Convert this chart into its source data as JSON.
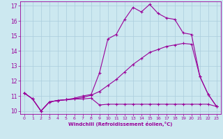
{
  "xlabel": "Windchill (Refroidissement éolien,°C)",
  "background_color": "#cce8f0",
  "grid_color": "#aaccdd",
  "line_color": "#990099",
  "xlim": [
    -0.5,
    23.5
  ],
  "ylim": [
    9.8,
    17.3
  ],
  "yticks": [
    10,
    11,
    12,
    13,
    14,
    15,
    16,
    17
  ],
  "xticks": [
    0,
    1,
    2,
    3,
    4,
    5,
    6,
    7,
    8,
    9,
    10,
    11,
    12,
    13,
    14,
    15,
    16,
    17,
    18,
    19,
    20,
    21,
    22,
    23
  ],
  "line1_x": [
    0,
    1,
    2,
    3,
    4,
    5,
    6,
    7,
    8,
    9,
    10,
    11,
    12,
    13,
    14,
    15,
    16,
    17,
    18,
    19,
    20,
    21,
    22,
    23
  ],
  "line1_y": [
    11.2,
    10.8,
    10.0,
    10.6,
    10.7,
    10.75,
    10.8,
    10.8,
    10.85,
    10.4,
    10.45,
    10.45,
    10.45,
    10.45,
    10.45,
    10.45,
    10.45,
    10.45,
    10.45,
    10.45,
    10.45,
    10.45,
    10.45,
    10.3
  ],
  "line2_x": [
    0,
    1,
    2,
    3,
    4,
    5,
    6,
    7,
    8,
    9,
    10,
    11,
    12,
    13,
    14,
    15,
    16,
    17,
    18,
    19,
    20,
    21,
    22,
    23
  ],
  "line2_y": [
    11.2,
    10.8,
    10.0,
    10.6,
    10.7,
    10.75,
    10.8,
    10.9,
    11.05,
    11.3,
    11.7,
    12.1,
    12.6,
    13.1,
    13.5,
    13.9,
    14.1,
    14.3,
    14.4,
    14.5,
    14.45,
    12.3,
    11.1,
    10.3
  ],
  "line3_x": [
    0,
    1,
    2,
    3,
    4,
    5,
    6,
    7,
    8,
    9,
    10,
    11,
    12,
    13,
    14,
    15,
    16,
    17,
    18,
    19,
    20,
    21,
    22,
    23
  ],
  "line3_y": [
    11.2,
    10.8,
    10.0,
    10.6,
    10.7,
    10.75,
    10.85,
    11.0,
    11.1,
    12.55,
    14.8,
    15.1,
    16.1,
    16.9,
    16.6,
    17.1,
    16.5,
    16.2,
    16.1,
    15.2,
    15.1,
    12.3,
    11.1,
    10.3
  ]
}
